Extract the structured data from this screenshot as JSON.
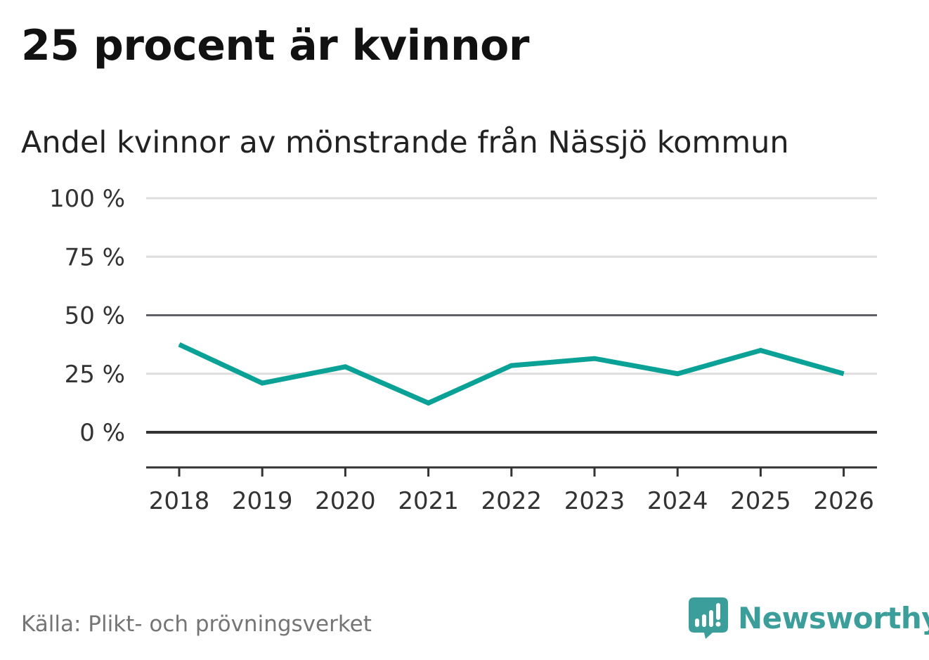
{
  "header": {
    "title": "25 procent är kvinnor",
    "subtitle": "Andel kvinnor av mönstrande från Nässjö kommun"
  },
  "footer": {
    "source": "Källa: Plikt- och prövningsverket",
    "brand": "Newsworthy"
  },
  "colors": {
    "line": "#0aa196",
    "grid": "#dddddd",
    "reference": "#5f5f66",
    "axis": "#333333",
    "brand": "#3b9e9a"
  },
  "chart_data": {
    "type": "line",
    "title": "25 procent är kvinnor",
    "subtitle": "Andel kvinnor av mönstrande från Nässjö kommun",
    "xlabel": "",
    "ylabel": "",
    "categories": [
      "2018",
      "2019",
      "2020",
      "2021",
      "2022",
      "2023",
      "2024",
      "2025",
      "2026"
    ],
    "series": [
      {
        "name": "Andel kvinnor",
        "values": [
          37.5,
          21,
          28,
          12.5,
          28.5,
          31.5,
          25,
          35,
          25
        ]
      }
    ],
    "ylim": [
      -15,
      100
    ],
    "yticks": [
      0,
      25,
      50,
      75,
      100
    ],
    "ytick_labels": [
      "0 %",
      "25 %",
      "50 %",
      "75 %",
      "100 %"
    ],
    "reference_line": 50,
    "grid": true,
    "legend": "none"
  }
}
